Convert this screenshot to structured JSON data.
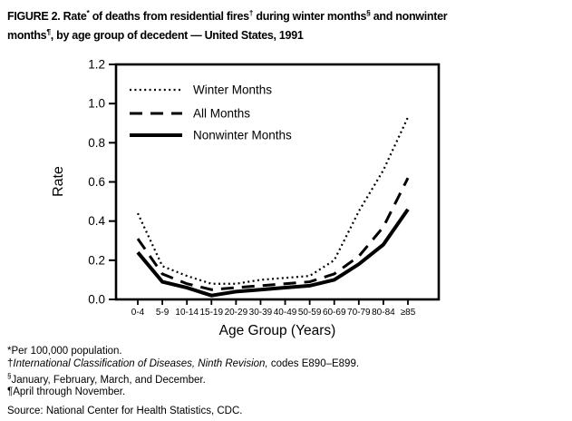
{
  "figure": {
    "title_line1_parts": [
      {
        "t": "FIGURE 2. Rate"
      },
      {
        "t": "*",
        "sup": true
      },
      {
        "t": " of deaths from residential fires"
      },
      {
        "t": "†",
        "sup": true
      },
      {
        "t": " during winter months"
      },
      {
        "t": "§",
        "sup": true
      },
      {
        "t": " and nonwinter"
      }
    ],
    "title_line2_parts": [
      {
        "t": "months"
      },
      {
        "t": "¶",
        "sup": true
      },
      {
        "t": ", by age group of decedent — United States, 1991"
      }
    ],
    "footnotes": [
      {
        "parts": [
          {
            "t": "*"
          },
          {
            "t": "Per 100,000 population."
          }
        ]
      },
      {
        "parts": [
          {
            "t": "†"
          },
          {
            "t": "International Classification of Diseases, Ninth Revision,",
            "italic": true
          },
          {
            "t": " codes E890–E899."
          }
        ]
      },
      {
        "parts": [
          {
            "t": "§",
            "sup": true
          },
          {
            "t": "January, February, March, and December."
          }
        ]
      },
      {
        "parts": [
          {
            "t": "¶"
          },
          {
            "t": "April through November."
          }
        ]
      }
    ],
    "source": "Source: National Center for Health Statistics, CDC."
  },
  "chart_data": {
    "type": "line",
    "title": "Rate of deaths from residential fires during winter and nonwinter months, by age group, United States, 1991",
    "xlabel": "Age Group (Years)",
    "ylabel": "Rate",
    "ylim": [
      0,
      1.2
    ],
    "yticks": [
      0.0,
      0.2,
      0.4,
      0.6,
      0.8,
      1.0,
      1.2
    ],
    "grid": false,
    "legend_position": "top-left-inside",
    "line_color": "#000000",
    "background_color": "#ffffff",
    "categories": [
      "0-4",
      "5-9",
      "10-14",
      "15-19",
      "20-29",
      "30-39",
      "40-49",
      "50-59",
      "60-69",
      "70-79",
      "80-84",
      "≥85"
    ],
    "series": [
      {
        "name": "Winter Months",
        "style": "dotted",
        "values": [
          0.44,
          0.17,
          0.12,
          0.08,
          0.08,
          0.1,
          0.11,
          0.12,
          0.2,
          0.45,
          0.66,
          0.93
        ]
      },
      {
        "name": "All Months",
        "style": "dashed",
        "values": [
          0.31,
          0.13,
          0.08,
          0.05,
          0.06,
          0.07,
          0.08,
          0.09,
          0.13,
          0.22,
          0.37,
          0.62
        ]
      },
      {
        "name": "Nonwinter Months",
        "style": "solid",
        "values": [
          0.24,
          0.09,
          0.06,
          0.02,
          0.04,
          0.05,
          0.06,
          0.07,
          0.1,
          0.18,
          0.28,
          0.46
        ]
      }
    ]
  }
}
